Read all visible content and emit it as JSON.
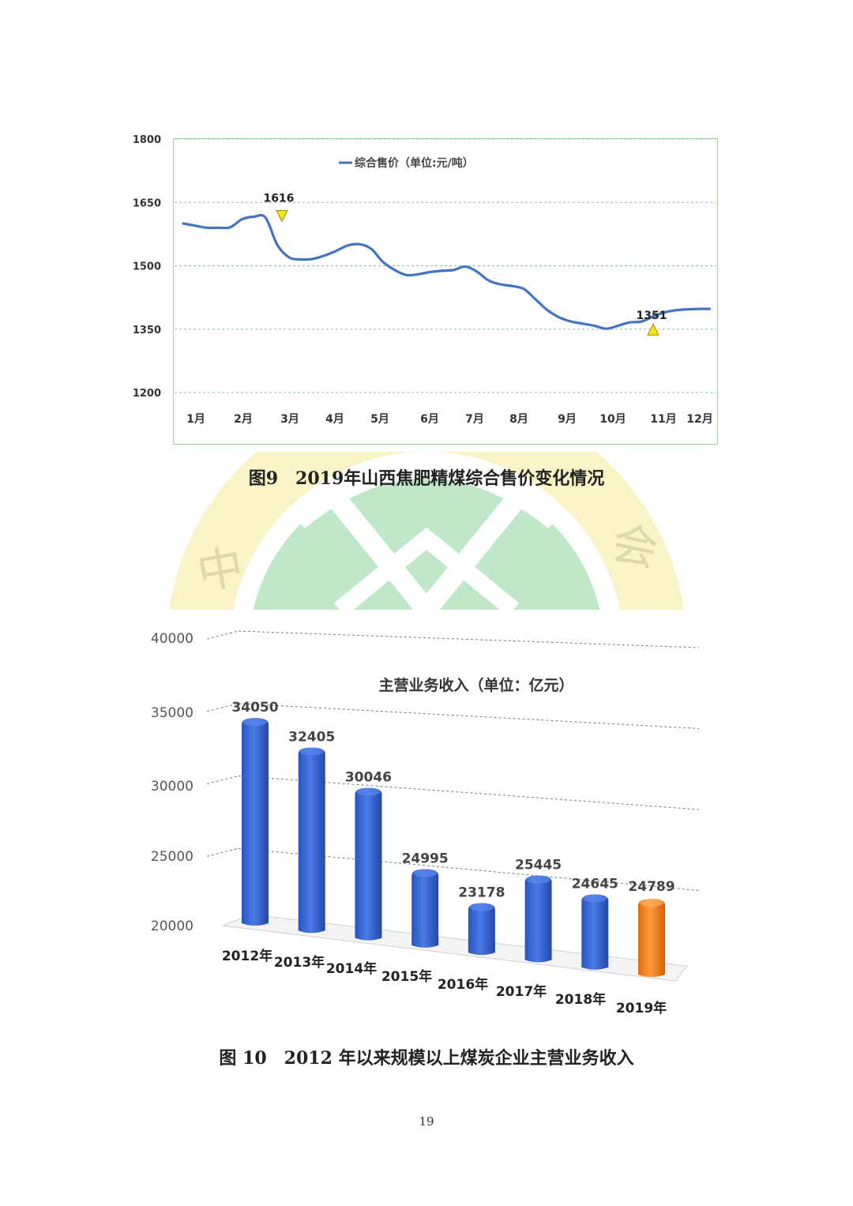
{
  "page": {
    "number": "19"
  },
  "captions": {
    "fig9": "图9　2019年山西焦肥精煤综合售价变化情况",
    "fig10": "图 10　2012 年以来规模以上煤炭企业主营业务收入"
  },
  "colors": {
    "line": "#4472c4",
    "bar_blue": "#3a66d1",
    "bar_orange": "#f08020",
    "marker": "#f5e21a",
    "grid1": "#7ec87e",
    "watermark_green": "#7fcf8f",
    "watermark_yellow": "#f3e27a"
  },
  "chart_data": [
    {
      "type": "line",
      "title": "",
      "legend": "综合售价（单位:元/吨）",
      "legend_position": "top-center",
      "categories": [
        "1月",
        "2月",
        "3月",
        "4月",
        "5月",
        "6月",
        "7月",
        "8月",
        "9月",
        "10月",
        "11月",
        "12月"
      ],
      "series": [
        {
          "name": "综合售价（单位:元/吨）",
          "x": [
            0,
            0.25,
            0.5,
            0.75,
            1,
            1.25,
            1.5,
            1.75,
            2,
            2.25,
            2.5,
            2.75,
            3,
            3.25,
            3.5,
            3.75,
            4,
            4.25,
            4.5,
            4.75,
            5,
            5.25,
            5.5,
            5.75,
            6,
            6.25,
            6.5,
            6.75,
            7,
            7.25,
            7.5,
            7.75,
            8,
            8.25,
            8.5,
            8.75,
            9,
            9.25,
            9.5,
            9.75,
            10,
            10.25,
            10.5,
            10.75,
            11,
            11.2
          ],
          "values": [
            1600,
            1595,
            1590,
            1590,
            1591,
            1610,
            1616,
            1614,
            1550,
            1520,
            1515,
            1516,
            1524,
            1535,
            1548,
            1551,
            1540,
            1509,
            1490,
            1478,
            1480,
            1485,
            1488,
            1490,
            1498,
            1486,
            1465,
            1456,
            1452,
            1445,
            1420,
            1395,
            1378,
            1368,
            1363,
            1358,
            1351,
            1358,
            1366,
            1368,
            1380,
            1390,
            1395,
            1397,
            1398,
            1398
          ]
        }
      ],
      "annotations": [
        {
          "label": "1616",
          "x": 2.1,
          "value": 1616,
          "marker": "down-triangle"
        },
        {
          "label": "1351",
          "x": 10.0,
          "value": 1351,
          "marker": "up-triangle"
        }
      ],
      "ylim": [
        1200,
        1800
      ],
      "yticks": [
        1200,
        1350,
        1500,
        1650,
        1800
      ],
      "grid": true,
      "xlabel": "",
      "ylabel": ""
    },
    {
      "type": "bar",
      "title": "主营业务收入（单位：亿元）",
      "categories": [
        "2012年",
        "2013年",
        "2014年",
        "2015年",
        "2016年",
        "2017年",
        "2018年",
        "2019年"
      ],
      "series": [
        {
          "name": "主营业务收入（单位：亿元）",
          "values": [
            34050,
            32405,
            30046,
            24995,
            23178,
            25445,
            24645,
            24789
          ]
        }
      ],
      "highlight_index": 7,
      "ylim": [
        20000,
        40000
      ],
      "yticks": [
        20000,
        25000,
        30000,
        35000,
        40000
      ],
      "grid": true,
      "style": "3d",
      "xlabel": "",
      "ylabel": ""
    }
  ]
}
